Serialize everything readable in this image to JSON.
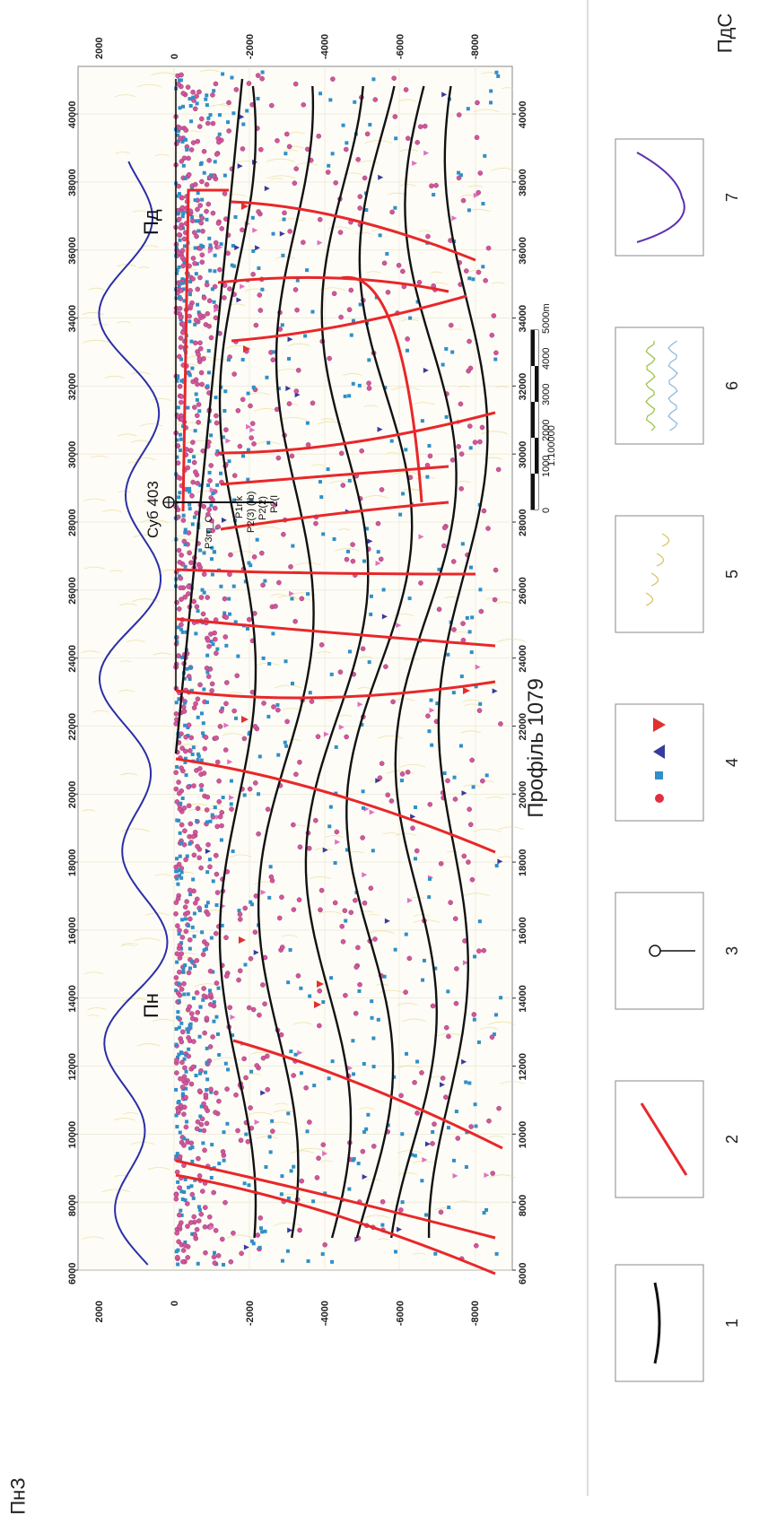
{
  "title": "Профіль 1079",
  "corner_left_end": "ПнЗ",
  "corner_right_end": "ПдС",
  "x_ticks": [
    "6000",
    "8000",
    "10000",
    "12000",
    "14000",
    "16000",
    "18000",
    "20000",
    "22000",
    "24000",
    "26000",
    "28000",
    "30000",
    "32000",
    "34000",
    "36000",
    "38000",
    "40000"
  ],
  "y_ticks": [
    "2000",
    "0",
    "-2000",
    "-4000",
    "-6000",
    "-8000"
  ],
  "well_label": "Суб 403",
  "horizon_labels": [
    "Пн",
    "Пд"
  ],
  "well_annotations": [
    "Р3гп_С",
    "P1nk",
    "P2(3) (Ib)",
    "P2(2)",
    "P2(I"
  ],
  "scale_bar": {
    "ticks": [
      "0",
      "1000",
      "2000",
      "3000",
      "4000",
      "5000m"
    ],
    "ratio": "1:100000"
  },
  "legend": [
    {
      "number": "1",
      "icon": "black-horizon-line"
    },
    {
      "number": "2",
      "icon": "red-fault-line"
    },
    {
      "number": "3",
      "icon": "well-symbol"
    },
    {
      "number": "4",
      "icon": "point-markers"
    },
    {
      "number": "5",
      "icon": "yellow-arcs"
    },
    {
      "number": "6",
      "icon": "green-blue-wiggles"
    },
    {
      "number": "7",
      "icon": "blue-curve"
    }
  ],
  "colors": {
    "horizon": "#111111",
    "fault": "#e8272a",
    "curve": "#2a2fa8",
    "circle": "#d2569a",
    "square": "#2f8fc8",
    "triangle_red": "#e03030",
    "triangle_blue": "#3a3a9c",
    "triangle_pink": "#e070c0",
    "arc": "#e8d88a"
  }
}
